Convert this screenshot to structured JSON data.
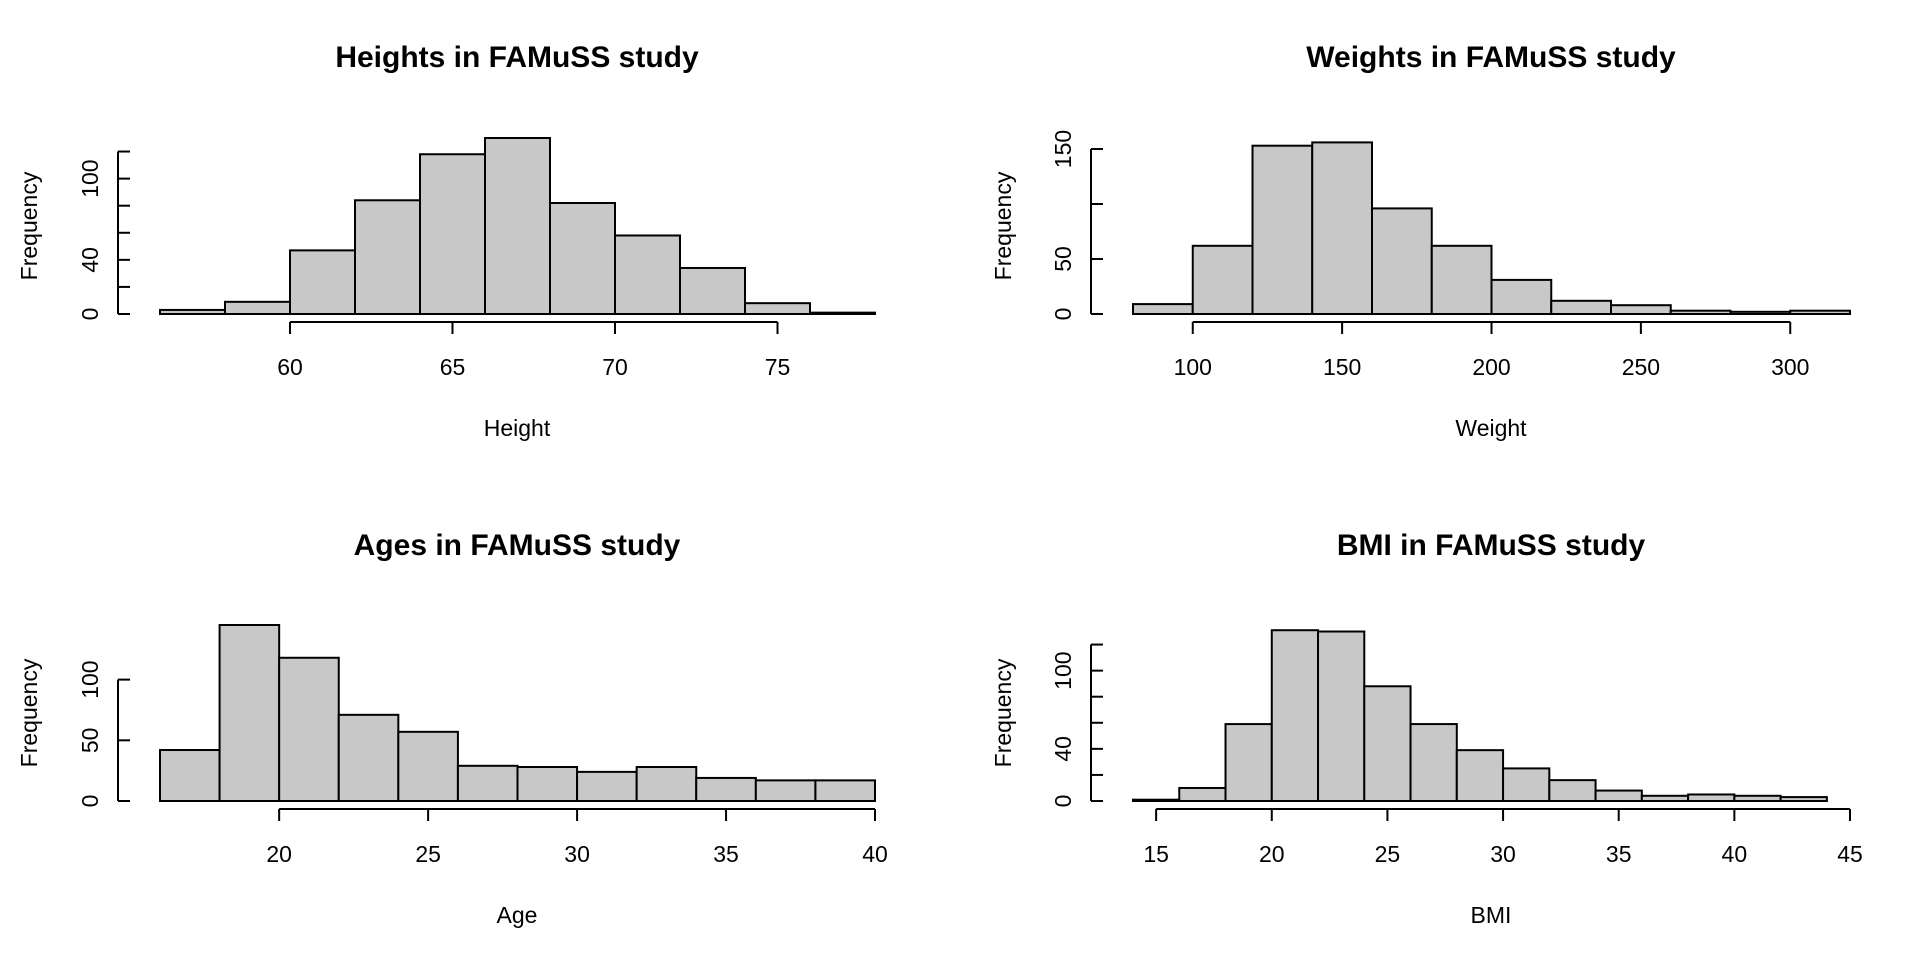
{
  "chart_data": [
    {
      "type": "bar",
      "title": "Heights in FAMuSS study",
      "xlabel": "Height",
      "ylabel": "Frequency",
      "bin_edges": [
        56,
        58,
        60,
        62,
        64,
        66,
        68,
        70,
        72,
        74,
        76,
        78
      ],
      "values": [
        3,
        9,
        47,
        84,
        118,
        130,
        82,
        58,
        34,
        8,
        1
      ],
      "xlim": [
        56,
        78
      ],
      "ylim": [
        0,
        130
      ],
      "x_ticks": [
        60,
        65,
        70,
        75
      ],
      "y_ticks": [
        0,
        20,
        40,
        60,
        80,
        100,
        120
      ],
      "y_tick_labels": [
        "0",
        "",
        "40",
        "",
        "",
        "100",
        ""
      ],
      "bar_color": "#c8c8c8"
    },
    {
      "type": "bar",
      "title": "Weights in FAMuSS study",
      "xlabel": "Weight",
      "ylabel": "Frequency",
      "bin_edges": [
        80,
        100,
        120,
        140,
        160,
        180,
        200,
        220,
        240,
        260,
        280,
        300,
        320
      ],
      "values": [
        9,
        62,
        153,
        156,
        96,
        62,
        31,
        12,
        8,
        3,
        2,
        3
      ],
      "xlim": [
        80,
        320
      ],
      "ylim": [
        0,
        160
      ],
      "x_ticks": [
        100,
        150,
        200,
        250,
        300
      ],
      "y_ticks": [
        0,
        50,
        100,
        150
      ],
      "y_tick_labels": [
        "0",
        "50",
        "",
        "150"
      ],
      "bar_color": "#c8c8c8"
    },
    {
      "type": "bar",
      "title": "Ages in FAMuSS study",
      "xlabel": "Age",
      "ylabel": "Frequency",
      "bin_edges": [
        16,
        18,
        20,
        22,
        24,
        26,
        28,
        30,
        32,
        34,
        36,
        38,
        40
      ],
      "values": [
        42,
        145,
        118,
        71,
        57,
        29,
        28,
        24,
        28,
        19,
        17,
        17
      ],
      "xlim": [
        16,
        40
      ],
      "ylim": [
        0,
        145
      ],
      "x_ticks": [
        20,
        25,
        30,
        35,
        40
      ],
      "y_ticks": [
        0,
        50,
        100
      ],
      "y_tick_labels": [
        "0",
        "50",
        "100"
      ],
      "bar_color": "#c8c8c8"
    },
    {
      "type": "bar",
      "title": "BMI in FAMuSS study",
      "xlabel": "BMI",
      "ylabel": "Frequency",
      "bin_edges": [
        14,
        16,
        18,
        20,
        22,
        24,
        26,
        28,
        30,
        32,
        34,
        36,
        38,
        40,
        42,
        44
      ],
      "values": [
        1,
        10,
        59,
        131,
        130,
        88,
        59,
        39,
        25,
        16,
        8,
        4,
        5,
        4,
        3
      ],
      "xlim": [
        14,
        45
      ],
      "ylim": [
        0,
        135
      ],
      "x_ticks": [
        15,
        20,
        25,
        30,
        35,
        40,
        45
      ],
      "y_ticks": [
        0,
        20,
        40,
        60,
        80,
        100,
        120
      ],
      "y_tick_labels": [
        "0",
        "",
        "40",
        "",
        "",
        "100",
        ""
      ],
      "bar_color": "#c8c8c8"
    }
  ]
}
